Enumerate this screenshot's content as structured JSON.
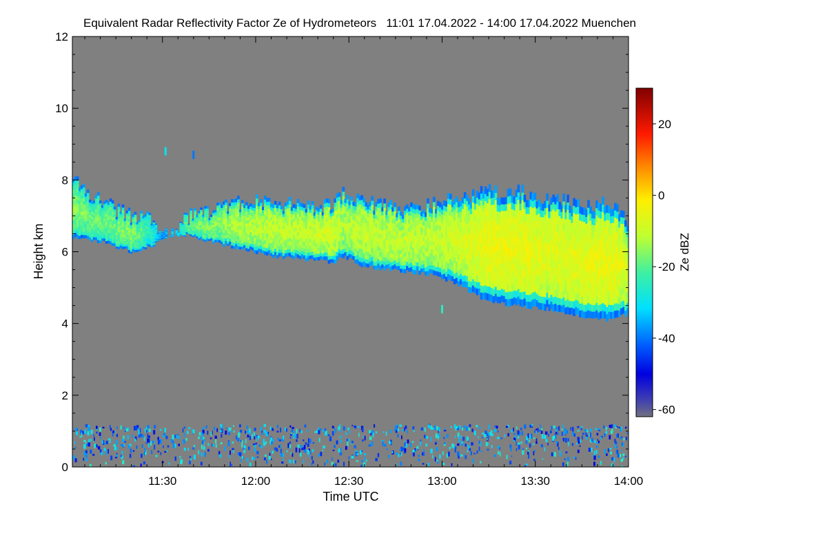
{
  "chart_data": {
    "type": "heatmap",
    "title": "Equivalent Radar Reflectivity Factor Ze of Hydrometeors   11:01 17.04.2022 - 14:00 17.04.2022 Muenchen",
    "xlabel": "Time UTC",
    "ylabel": "Height km",
    "x_unit": "minutes since 11:00 UTC",
    "xlim": [
      1,
      180
    ],
    "ylim": [
      0,
      12
    ],
    "x_ticks": [
      {
        "value": 30,
        "label": "11:30"
      },
      {
        "value": 60,
        "label": "12:00"
      },
      {
        "value": 90,
        "label": "12:30"
      },
      {
        "value": 120,
        "label": "13:00"
      },
      {
        "value": 150,
        "label": "13:30"
      },
      {
        "value": 180,
        "label": "14:00"
      }
    ],
    "y_ticks": [
      {
        "value": 0,
        "label": "0"
      },
      {
        "value": 2,
        "label": "2"
      },
      {
        "value": 4,
        "label": "4"
      },
      {
        "value": 6,
        "label": "6"
      },
      {
        "value": 8,
        "label": "8"
      },
      {
        "value": 10,
        "label": "10"
      },
      {
        "value": 12,
        "label": "12"
      }
    ],
    "colorbar": {
      "label": "Ze dBZ",
      "range": [
        -62,
        30
      ],
      "ticks": [
        {
          "value": -60,
          "label": "-60"
        },
        {
          "value": -40,
          "label": "-40"
        },
        {
          "value": -20,
          "label": "-20"
        },
        {
          "value": 0,
          "label": "0"
        },
        {
          "value": 20,
          "label": "20"
        }
      ]
    },
    "cloud_layer": {
      "time": [
        1,
        10,
        20,
        27,
        30,
        34,
        38,
        45,
        55,
        65,
        75,
        85,
        88,
        95,
        105,
        115,
        125,
        135,
        145,
        155,
        165,
        175,
        180
      ],
      "top_km": [
        8.0,
        7.4,
        7.0,
        6.9,
        6.5,
        6.5,
        7.0,
        7.1,
        7.4,
        7.4,
        7.3,
        7.3,
        7.6,
        7.4,
        7.2,
        7.3,
        7.5,
        7.7,
        7.7,
        7.5,
        7.3,
        7.4,
        6.8
      ],
      "base_km": [
        6.4,
        6.3,
        6.0,
        6.2,
        6.4,
        6.4,
        6.5,
        6.3,
        6.1,
        5.9,
        5.8,
        5.7,
        5.9,
        5.6,
        5.5,
        5.4,
        5.1,
        4.6,
        4.5,
        4.4,
        4.2,
        4.1,
        4.3
      ],
      "core_dbz": [
        -15,
        -18,
        -15,
        -25,
        -35,
        -30,
        -18,
        -15,
        -12,
        -10,
        -10,
        -8,
        -12,
        -10,
        -10,
        -10,
        -8,
        -4,
        -4,
        -6,
        -5,
        -4,
        -8
      ]
    },
    "isolated_echoes": [
      {
        "time": 31,
        "height_km": 8.8,
        "dbz": -30
      },
      {
        "time": 40,
        "height_km": 8.7,
        "dbz": -40
      },
      {
        "time": 120,
        "height_km": 4.4,
        "dbz": -25
      }
    ],
    "ground_clutter": {
      "height_range_km": [
        0,
        1.2
      ],
      "dbz_range": [
        -50,
        -25
      ]
    }
  }
}
